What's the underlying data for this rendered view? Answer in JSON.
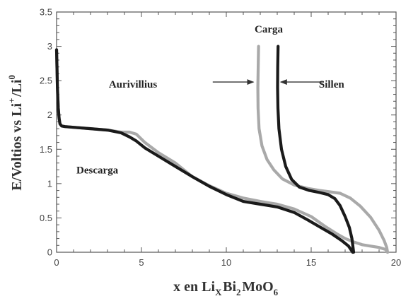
{
  "chart_data": {
    "type": "line",
    "title": "",
    "xlabel": {
      "parts": [
        {
          "text": "x en Li",
          "shift": "base"
        },
        {
          "text": "X",
          "shift": "sub"
        },
        {
          "text": "Bi",
          "shift": "base"
        },
        {
          "text": "2",
          "shift": "sub"
        },
        {
          "text": "MoO",
          "shift": "base"
        },
        {
          "text": "6",
          "shift": "sub"
        }
      ]
    },
    "ylabel": {
      "parts": [
        {
          "text": "E/Voltios vs Li",
          "shift": "base"
        },
        {
          "text": "+",
          "shift": "sup"
        },
        {
          "text": "/Li",
          "shift": "base"
        },
        {
          "text": "0",
          "shift": "sup"
        }
      ]
    },
    "xlim": [
      0,
      20
    ],
    "ylim": [
      0,
      3.5
    ],
    "x_ticks": [
      "0",
      "5",
      "10",
      "15",
      "20"
    ],
    "y_ticks": [
      "0",
      "0.5",
      "1",
      "1.5",
      "2",
      "2.5",
      "3",
      "3.5"
    ],
    "grid": false,
    "annotations": [
      {
        "text": "Carga",
        "x": 12.5,
        "y": 3.2
      },
      {
        "text": "Aurivillius",
        "x": 4.5,
        "y": 2.4
      },
      {
        "text": "Sillen",
        "x": 16.2,
        "y": 2.4
      },
      {
        "text": "Descarga",
        "x": 2.4,
        "y": 1.15
      }
    ],
    "arrows": [
      {
        "from": [
          9.2,
          2.48
        ],
        "to": [
          11.6,
          2.48
        ]
      },
      {
        "from": [
          15.7,
          2.48
        ],
        "to": [
          13.2,
          2.48
        ]
      }
    ],
    "series": [
      {
        "name": "Aurivillius",
        "color": "#a9a9a9",
        "segments": [
          {
            "x": [
              0.0,
              0.05,
              0.1,
              0.15,
              0.2,
              0.3,
              0.5,
              1.0,
              2.0,
              3.0,
              3.8,
              4.3,
              4.7,
              5.2,
              6.0,
              7.0,
              8.0,
              9.0,
              10.0,
              11.0,
              12.0,
              13.0,
              14.0,
              15.0,
              15.8,
              16.5,
              17.0,
              17.5,
              18.0,
              18.5,
              19.0,
              19.4,
              19.5
            ],
            "y": [
              2.95,
              2.4,
              2.1,
              1.95,
              1.87,
              1.84,
              1.83,
              1.82,
              1.8,
              1.78,
              1.75,
              1.75,
              1.72,
              1.6,
              1.45,
              1.3,
              1.1,
              0.97,
              0.86,
              0.79,
              0.74,
              0.7,
              0.63,
              0.52,
              0.38,
              0.27,
              0.2,
              0.15,
              0.11,
              0.09,
              0.07,
              0.04,
              0.0
            ]
          },
          {
            "x": [
              11.9,
              11.88,
              11.86,
              11.87,
              11.93,
              12.1,
              12.4,
              12.8,
              13.3,
              14.0,
              14.8,
              15.5,
              16.1,
              16.7,
              17.3,
              17.9,
              18.5,
              19.0,
              19.3,
              19.45,
              19.5
            ],
            "y": [
              3.0,
              2.7,
              2.4,
              2.1,
              1.8,
              1.55,
              1.35,
              1.2,
              1.07,
              0.98,
              0.93,
              0.9,
              0.88,
              0.86,
              0.79,
              0.67,
              0.51,
              0.32,
              0.17,
              0.07,
              0.0
            ]
          }
        ]
      },
      {
        "name": "Sillen",
        "color": "#1a1a1a",
        "segments": [
          {
            "x": [
              0.0,
              0.05,
              0.1,
              0.15,
              0.2,
              0.3,
              0.5,
              1.0,
              2.0,
              3.0,
              3.8,
              4.3,
              4.7,
              5.2,
              6.0,
              7.0,
              8.0,
              9.0,
              10.0,
              11.0,
              12.0,
              13.0,
              14.0,
              14.8,
              15.5,
              16.2,
              16.8,
              17.2,
              17.45
            ],
            "y": [
              2.95,
              2.4,
              2.1,
              1.95,
              1.87,
              1.84,
              1.83,
              1.82,
              1.8,
              1.78,
              1.74,
              1.68,
              1.62,
              1.52,
              1.4,
              1.25,
              1.1,
              0.96,
              0.84,
              0.74,
              0.7,
              0.66,
              0.58,
              0.47,
              0.37,
              0.27,
              0.17,
              0.09,
              0.0
            ]
          },
          {
            "x": [
              13.05,
              13.03,
              13.02,
              13.04,
              13.1,
              13.25,
              13.5,
              13.85,
              14.3,
              14.9,
              15.5,
              16.0,
              16.4,
              16.7,
              17.0,
              17.25,
              17.4,
              17.45,
              17.5
            ],
            "y": [
              3.0,
              2.7,
              2.4,
              2.1,
              1.8,
              1.5,
              1.25,
              1.06,
              0.95,
              0.9,
              0.87,
              0.84,
              0.78,
              0.68,
              0.52,
              0.36,
              0.2,
              0.1,
              0.0
            ]
          }
        ]
      }
    ]
  }
}
